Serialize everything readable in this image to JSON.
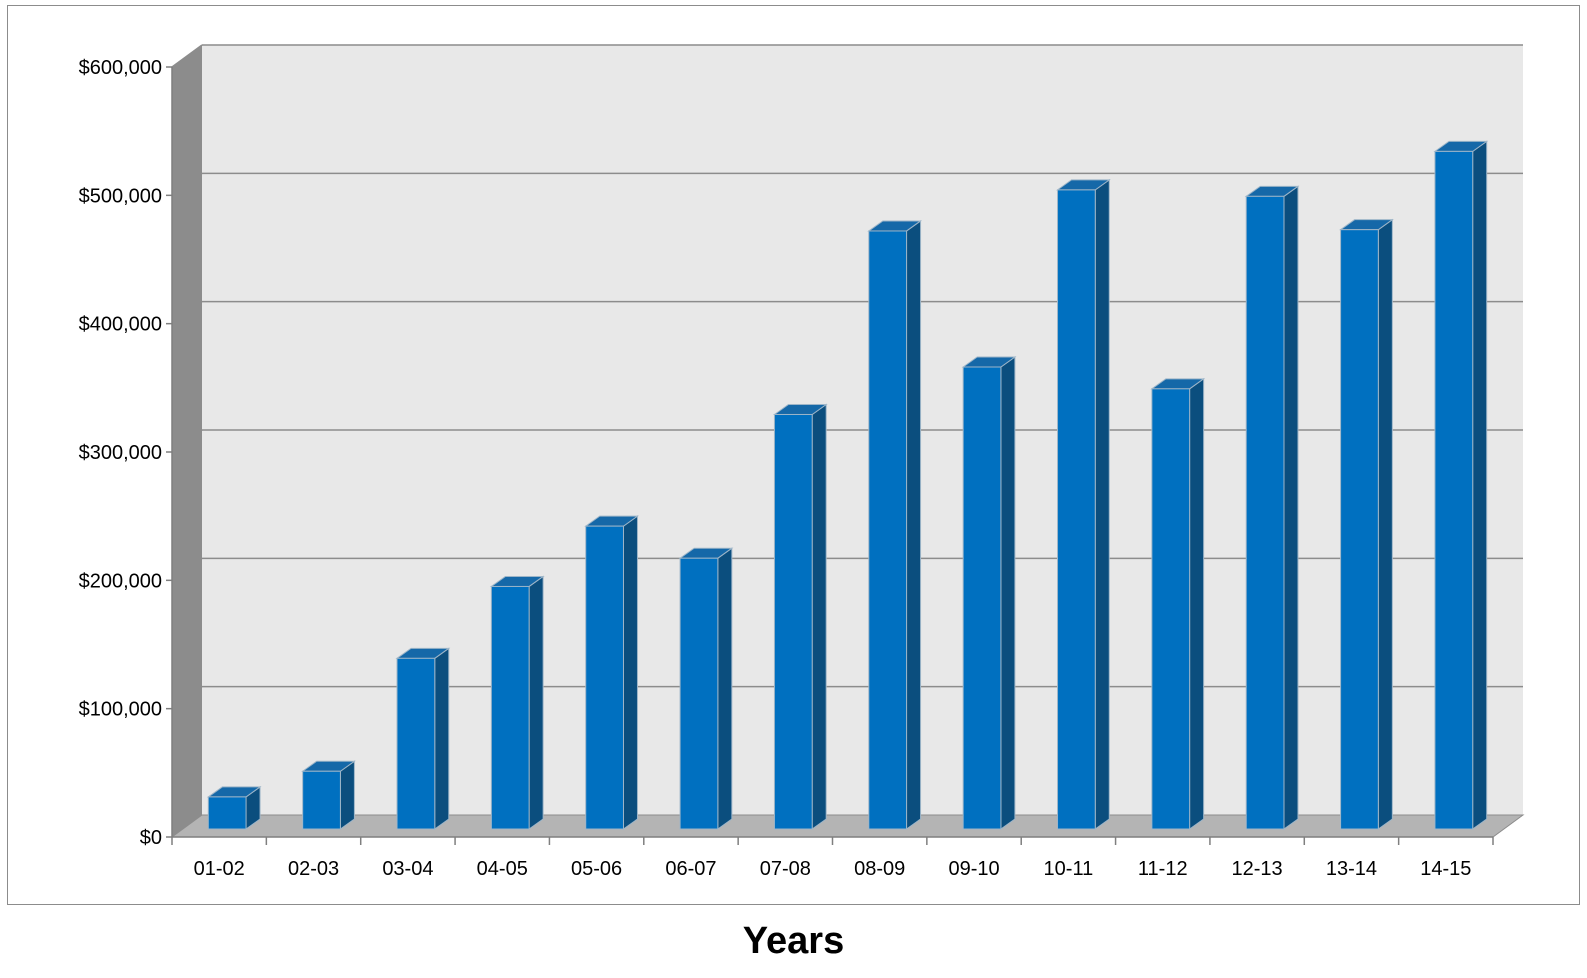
{
  "chart_data": {
    "type": "bar",
    "style": "3d-column",
    "categories": [
      "01-02",
      "02-03",
      "03-04",
      "04-05",
      "05-06",
      "06-07",
      "07-08",
      "08-09",
      "09-10",
      "10-11",
      "11-12",
      "12-13",
      "13-14",
      "14-15"
    ],
    "values": [
      25000,
      45000,
      133000,
      189000,
      236000,
      211000,
      323000,
      466000,
      360000,
      498000,
      343000,
      493000,
      467000,
      528000
    ],
    "ylim": [
      0,
      600000
    ],
    "yticks": [
      0,
      100000,
      200000,
      300000,
      400000,
      500000,
      600000
    ],
    "ytick_labels": [
      "$0",
      "$100,000",
      "$200,000",
      "$300,000",
      "$400,000",
      "$500,000",
      "$600,000"
    ],
    "title": "",
    "xlabel": "Years",
    "ylabel": "",
    "grid": true,
    "legend": "none",
    "colors": {
      "bar_front": "#0070C0",
      "bar_side": "#0B4E7E",
      "bar_top": "#1568A8",
      "wall": "#E8E8E8",
      "side_wall": "#8C8C8C",
      "floor": "#B4B4B4",
      "gridline": "#8C8C8C"
    }
  }
}
